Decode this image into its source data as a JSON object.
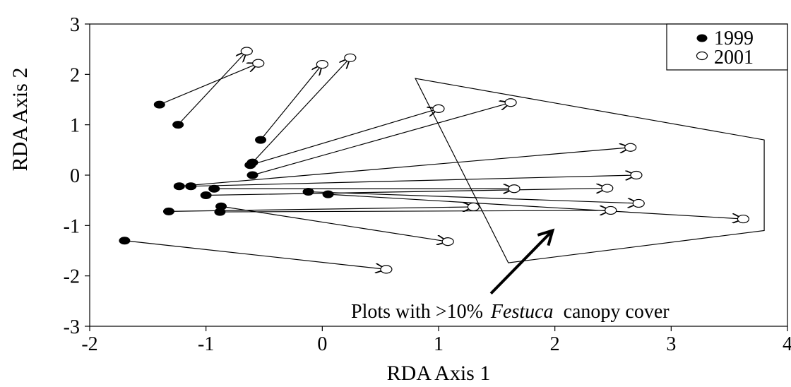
{
  "chart_data": {
    "type": "scatter",
    "xlabel": "RDA Axis 1",
    "ylabel": "RDA Axis 2",
    "xlim": [
      -2,
      4
    ],
    "ylim": [
      -3,
      3
    ],
    "xticks": [
      "-2",
      "-1",
      "0",
      "1",
      "2",
      "3",
      "4"
    ],
    "yticks": [
      "3",
      "2",
      "1",
      "0",
      "-1",
      "-2",
      "-3"
    ],
    "legend": {
      "position": "top-right",
      "entries": [
        "1999",
        "2001"
      ]
    },
    "series": [
      {
        "name": "1999",
        "marker": "filled-circle"
      },
      {
        "name": "2001",
        "marker": "open-circle"
      }
    ],
    "pairs": [
      {
        "from": [
          -1.4,
          1.4
        ],
        "to": [
          -0.55,
          2.22
        ]
      },
      {
        "from": [
          -1.24,
          1.0
        ],
        "to": [
          -0.65,
          2.46
        ]
      },
      {
        "from": [
          -0.53,
          0.7
        ],
        "to": [
          0.0,
          2.2
        ]
      },
      {
        "from": [
          -0.6,
          0.25
        ],
        "to": [
          0.24,
          2.33
        ]
      },
      {
        "from": [
          -0.62,
          0.2
        ],
        "to": [
          1.0,
          1.32
        ]
      },
      {
        "from": [
          -0.6,
          0.0
        ],
        "to": [
          1.62,
          1.44
        ]
      },
      {
        "from": [
          -1.23,
          -0.22
        ],
        "to": [
          2.65,
          0.55
        ]
      },
      {
        "from": [
          -1.13,
          -0.22
        ],
        "to": [
          2.7,
          0.0
        ]
      },
      {
        "from": [
          -0.93,
          -0.27
        ],
        "to": [
          1.65,
          -0.27
        ]
      },
      {
        "from": [
          -1.0,
          -0.4
        ],
        "to": [
          2.45,
          -0.26
        ]
      },
      {
        "from": [
          -0.12,
          -0.33
        ],
        "to": [
          2.72,
          -0.56
        ]
      },
      {
        "from": [
          0.05,
          -0.38
        ],
        "to": [
          3.62,
          -0.87
        ]
      },
      {
        "from": [
          -1.32,
          -0.72
        ],
        "to": [
          1.3,
          -0.63
        ]
      },
      {
        "from": [
          -0.87,
          -0.62
        ],
        "to": [
          1.08,
          -1.32
        ]
      },
      {
        "from": [
          -0.88,
          -0.73
        ],
        "to": [
          2.48,
          -0.7
        ]
      },
      {
        "from": [
          -1.7,
          -1.3
        ],
        "to": [
          0.55,
          -1.87
        ]
      }
    ],
    "annotation": {
      "text_before": "Plots with >10%",
      "text_italic": "Festuca",
      "text_after": "canopy cover",
      "hull": [
        [
          0.8,
          1.92
        ],
        [
          3.8,
          0.7
        ],
        [
          3.8,
          -1.1
        ],
        [
          1.6,
          -1.74
        ]
      ],
      "arrow_from": [
        1.45,
        -2.35
      ],
      "arrow_to": [
        1.98,
        -1.1
      ]
    }
  }
}
